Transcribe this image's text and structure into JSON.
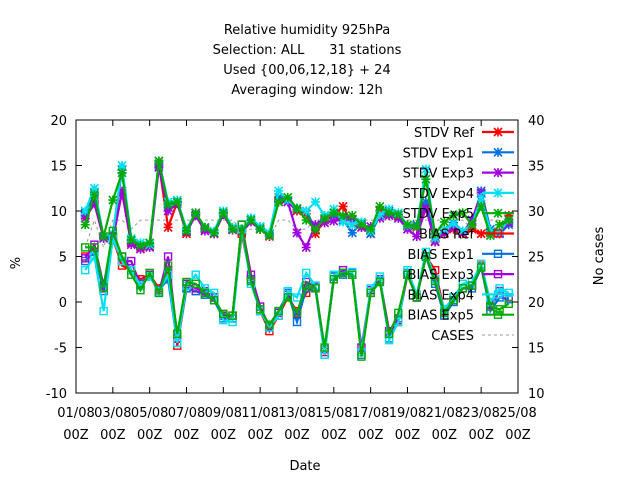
{
  "chart_data": {
    "type": "line",
    "title_lines": [
      "Relative humidity 925hPa",
      "Selection: ALL      31 stations",
      "Used {00,06,12,18} + 24",
      "Averaging window: 12h"
    ],
    "xlabel": "Date",
    "ylabel": "%",
    "y2label": "No cases",
    "ylim": [
      -10,
      20
    ],
    "y2lim": [
      10,
      40
    ],
    "yticks": [
      "-10",
      "-5",
      "0",
      "5",
      "10",
      "15",
      "20"
    ],
    "y2ticks": [
      "10",
      "15",
      "20",
      "25",
      "30",
      "35",
      "40"
    ],
    "x_ticks": [
      {
        "d": "01/08",
        "t": "00Z"
      },
      {
        "d": "03/08",
        "t": "00Z"
      },
      {
        "d": "05/08",
        "t": "00Z"
      },
      {
        "d": "07/08",
        "t": "00Z"
      },
      {
        "d": "09/08",
        "t": "00Z"
      },
      {
        "d": "11/08",
        "t": "00Z"
      },
      {
        "d": "13/08",
        "t": "00Z"
      },
      {
        "d": "15/08",
        "t": "00Z"
      },
      {
        "d": "17/08",
        "t": "00Z"
      },
      {
        "d": "19/08",
        "t": "00Z"
      },
      {
        "d": "21/08",
        "t": "00Z"
      },
      {
        "d": "23/08",
        "t": "00Z"
      },
      {
        "d": "25/08",
        "t": "00Z"
      }
    ],
    "x_days": [
      1.5,
      2,
      2.5,
      3,
      3.5,
      4,
      4.5,
      5,
      5.5,
      6,
      6.5,
      7,
      7.5,
      8,
      8.5,
      9,
      9.5,
      10,
      10.5,
      11,
      11.5,
      12,
      12.5,
      13,
      13.5,
      14,
      14.5,
      15,
      15.5,
      16,
      16.5,
      17,
      17.5,
      18,
      18.5,
      19,
      19.5,
      20,
      20.5,
      21,
      21.5,
      22,
      22.5,
      23,
      23.5,
      24,
      24.5
    ],
    "series": [
      {
        "name": "STDV Ref",
        "color": "#ff0000",
        "marker": "x",
        "axis": "y",
        "values": [
          9.5,
          11,
          7.2,
          7,
          12,
          6.5,
          6,
          6.1,
          15.2,
          8.2,
          11,
          7.5,
          9.8,
          8,
          7.5,
          9.8,
          8,
          7.8,
          9,
          8,
          7.2,
          11.2,
          11,
          10,
          9.7,
          7.5,
          9,
          9.5,
          10.5,
          8.5,
          8.2,
          7.5,
          10,
          9.5,
          9.4,
          8,
          8.2,
          10.5,
          6.7,
          7.5,
          8,
          7.5,
          8,
          7.5,
          7.7,
          7.5,
          9.5
        ]
      },
      {
        "name": "STDV Exp1",
        "color": "#0070e0",
        "marker": "x",
        "axis": "y",
        "values": [
          9.8,
          12,
          7,
          7.2,
          14.5,
          6.8,
          6.2,
          6.3,
          15,
          10.5,
          11,
          7.8,
          9.6,
          8.1,
          7.6,
          9.7,
          8.2,
          7.9,
          9.2,
          8.2,
          7.5,
          11.5,
          11,
          10.2,
          10,
          8,
          9.5,
          9.5,
          9,
          7.6,
          8.7,
          7.5,
          9.5,
          10,
          9.5,
          8.3,
          8.5,
          11,
          7,
          8,
          8.7,
          7.8,
          8.5,
          12.2,
          8,
          7.5,
          8.5
        ]
      },
      {
        "name": "STDV Exp3",
        "color": "#a000e0",
        "marker": "x",
        "axis": "y",
        "values": [
          9.2,
          10.8,
          7,
          6.8,
          12.2,
          6.3,
          5.8,
          6,
          14.8,
          10,
          10.8,
          7.7,
          9.5,
          7.8,
          7.5,
          9.6,
          7.9,
          7.7,
          8.8,
          8,
          7.3,
          11,
          11,
          7.6,
          6,
          8.5,
          8.7,
          8.9,
          9.3,
          9,
          8.2,
          8.3,
          9.2,
          9.5,
          9.2,
          8,
          7.2,
          10.3,
          6.6,
          7.6,
          8.2,
          7.6,
          9,
          12,
          7.6,
          7.6,
          8.7
        ]
      },
      {
        "name": "STDV Exp4",
        "color": "#00e0f0",
        "marker": "x",
        "axis": "y",
        "values": [
          10,
          12.5,
          7.2,
          7.5,
          15,
          7,
          6.5,
          6.3,
          15.5,
          11,
          11.2,
          8,
          9.8,
          8.2,
          7.8,
          10,
          8.2,
          8,
          9.2,
          8.3,
          7.6,
          12.2,
          11.2,
          10.3,
          10,
          11,
          9.5,
          10.2,
          8.8,
          8.5,
          8.8,
          7.8,
          9.6,
          10.2,
          9.8,
          8.4,
          8.3,
          14.6,
          7,
          8,
          8.6,
          7.8,
          8.5,
          11.5,
          7.8,
          7.7,
          9
        ]
      },
      {
        "name": "STDV Exp5",
        "color": "#00aa00",
        "marker": "x",
        "axis": "y",
        "values": [
          8.5,
          11.8,
          7.2,
          11.2,
          14.2,
          6.8,
          6.2,
          6.5,
          15.5,
          10.7,
          11,
          7.8,
          9.8,
          8.2,
          7.6,
          9.8,
          8,
          7.8,
          9,
          8,
          7.3,
          11,
          11.5,
          10.3,
          9,
          8,
          9.2,
          9.8,
          9.5,
          9.5,
          8.5,
          8,
          10.5,
          9.8,
          9.6,
          8.5,
          8.3,
          13.5,
          7.5,
          8.8,
          9.5,
          9.8,
          8.5,
          10.5,
          7.3,
          8.5,
          9
        ]
      },
      {
        "name": "BIAS Ref",
        "color": "#ff0000",
        "marker": "square",
        "axis": "y",
        "values": [
          5,
          6,
          1.5,
          7,
          4,
          3.5,
          2.5,
          3,
          1.5,
          3.5,
          -4.8,
          1.5,
          1.2,
          1,
          0.5,
          -1.5,
          -1.5,
          7.5,
          2.5,
          -1,
          -3.2,
          -1.5,
          0.5,
          -1,
          1,
          1.7,
          -5.5,
          2.8,
          3.2,
          3,
          -5.5,
          1,
          2.5,
          -3.5,
          -2,
          3,
          0.5,
          5,
          3.5,
          -1,
          0.5,
          1.5,
          1.8,
          4,
          -0.5,
          1.2,
          0.5
        ]
      },
      {
        "name": "BIAS Exp1",
        "color": "#0070e0",
        "marker": "square",
        "axis": "y",
        "values": [
          4.5,
          5.5,
          1.2,
          6.8,
          5,
          3.5,
          2,
          2.8,
          1.3,
          2.5,
          -4.5,
          1.5,
          1.2,
          0.8,
          0.2,
          -1.8,
          -1.8,
          8.5,
          2.5,
          -1,
          -2.5,
          -1,
          1,
          -2.2,
          1.5,
          1.5,
          -5.8,
          2.8,
          3,
          3.2,
          -5.8,
          1.3,
          2.3,
          -4,
          -2.2,
          3.2,
          0.5,
          5,
          2,
          -1.5,
          0,
          1.5,
          1.5,
          3.8,
          -1,
          0.5,
          0.3
        ]
      },
      {
        "name": "BIAS Exp3",
        "color": "#a000e0",
        "marker": "square",
        "axis": "y",
        "values": [
          4.8,
          6.3,
          1.8,
          7.2,
          4.5,
          4.5,
          1.8,
          3,
          1,
          5,
          -4,
          2,
          1.5,
          1.2,
          0.5,
          -1.5,
          -1.5,
          8.5,
          3,
          -0.5,
          -2.7,
          -1.2,
          0.8,
          -1.3,
          2.2,
          1.7,
          -5.2,
          2.5,
          3.5,
          3,
          -5,
          1.3,
          2.5,
          -3.2,
          -1.8,
          3,
          0.5,
          5,
          2.5,
          -1.2,
          0.2,
          1.5,
          1.8,
          3.8,
          -0.3,
          1.2,
          0.5
        ]
      },
      {
        "name": "BIAS Exp4",
        "color": "#00e0f0",
        "marker": "square",
        "axis": "y",
        "values": [
          3.5,
          5,
          -1,
          7,
          4.5,
          3.5,
          1.8,
          2.8,
          1.2,
          3,
          -4.5,
          1.8,
          3,
          1.5,
          1,
          -2,
          -2.2,
          8,
          2,
          -1,
          -2.8,
          -1.5,
          1.2,
          0.5,
          3.2,
          1.8,
          -5.8,
          3,
          3.2,
          3.3,
          -5.5,
          1.5,
          2.8,
          -4.2,
          -2.2,
          3.5,
          0.8,
          5.5,
          2.5,
          -0.8,
          0.5,
          2,
          2.2,
          4.2,
          0,
          1.5,
          1
        ]
      },
      {
        "name": "BIAS Exp5",
        "color": "#00aa00",
        "marker": "square",
        "axis": "y",
        "values": [
          6,
          6,
          1.6,
          7.8,
          5,
          3,
          1.3,
          3.2,
          1,
          4,
          -3.5,
          2.2,
          2,
          1,
          0.2,
          -1.3,
          -1.5,
          8.5,
          2.3,
          -0.8,
          -2.5,
          -1,
          0.5,
          -1.2,
          1.8,
          1.5,
          -5,
          2.5,
          3.2,
          3,
          -6,
          1,
          2.2,
          -3.5,
          -1.2,
          3,
          0.5,
          5,
          2.3,
          -1.2,
          0.2,
          1.5,
          1.8,
          3.8,
          -0.5,
          -0.8,
          -0.2
        ]
      },
      {
        "name": "CASES",
        "color": "#999999",
        "marker": "none",
        "dashed": true,
        "axis": "y2",
        "values": [
          26,
          29,
          26,
          29,
          29,
          28,
          29,
          29,
          29,
          29,
          29,
          29,
          29,
          29,
          29,
          29,
          29,
          28,
          28,
          28,
          27,
          29,
          29,
          28,
          28,
          29,
          29,
          29,
          29,
          29,
          29,
          29,
          29,
          29,
          29,
          29,
          29,
          29,
          29,
          29,
          29,
          29,
          28,
          27,
          29,
          29,
          28
        ]
      }
    ]
  }
}
